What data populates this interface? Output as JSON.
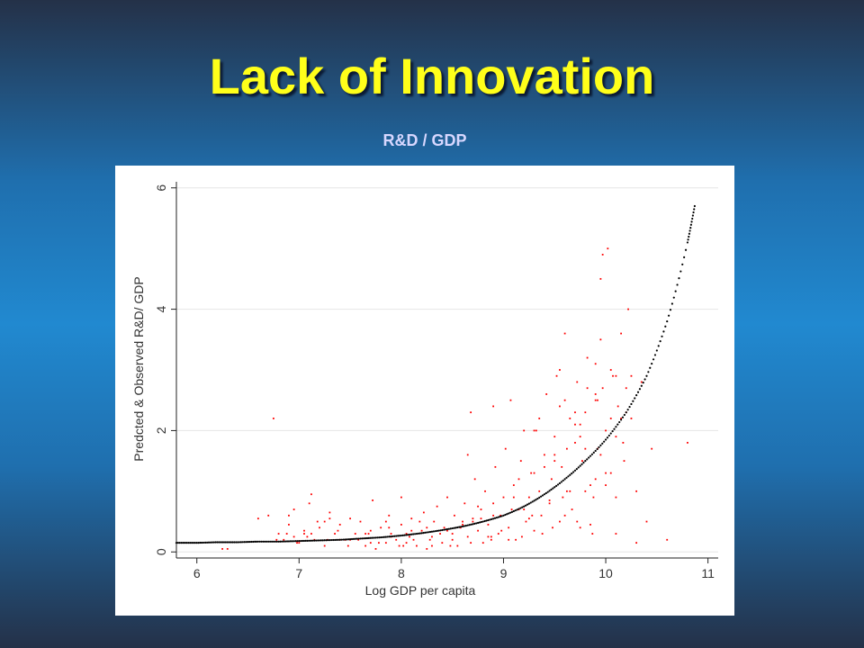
{
  "slide": {
    "title": "Lack of Innovation",
    "subtitle": "R&D / GDP"
  },
  "colors": {
    "background": "#2189d0",
    "title": "#ffff1a",
    "observed_points": "#ff0000",
    "fitted_curve": "#000000"
  },
  "chart_data": {
    "type": "scatter",
    "title": "",
    "xlabel": "Log GDP per capita",
    "ylabel": "Predcted & Observed R&D/ GDP",
    "xlim": [
      5.8,
      11.1
    ],
    "ylim": [
      -0.1,
      6.1
    ],
    "xticks": [
      6,
      7,
      8,
      9,
      10,
      11
    ],
    "yticks": [
      0,
      2,
      4,
      6
    ],
    "grid": true,
    "legend": "none",
    "series": [
      {
        "role": "observed",
        "marker": "dot",
        "color": "#ff0000",
        "x": [
          6.25,
          6.3,
          6.6,
          6.7,
          6.8,
          6.85,
          6.9,
          6.95,
          7.0,
          7.05,
          7.1,
          7.12,
          7.15,
          7.2,
          7.25,
          7.3,
          7.35,
          7.4,
          7.45,
          7.5,
          7.55,
          7.6,
          7.65,
          7.7,
          7.72,
          7.75,
          7.8,
          7.85,
          7.88,
          7.9,
          7.95,
          8.0,
          8.02,
          8.05,
          8.1,
          8.12,
          8.15,
          8.2,
          8.22,
          8.25,
          8.3,
          8.32,
          8.35,
          8.4,
          8.42,
          8.45,
          8.5,
          8.52,
          8.55,
          8.6,
          8.62,
          8.65,
          8.68,
          8.7,
          8.72,
          8.75,
          8.78,
          8.8,
          8.82,
          8.85,
          8.88,
          8.9,
          8.92,
          8.95,
          8.97,
          9.0,
          9.02,
          9.05,
          9.07,
          9.1,
          9.12,
          9.15,
          9.17,
          9.2,
          9.22,
          9.25,
          9.27,
          9.3,
          9.32,
          9.35,
          9.37,
          9.4,
          9.42,
          9.45,
          9.47,
          9.5,
          9.52,
          9.55,
          9.57,
          9.6,
          9.62,
          9.65,
          9.67,
          9.7,
          9.72,
          9.75,
          9.77,
          9.8,
          9.82,
          9.85,
          9.87,
          9.9,
          9.92,
          9.95,
          9.97,
          10.0,
          10.02,
          10.05,
          10.07,
          10.1,
          10.12,
          10.15,
          10.17,
          10.2,
          10.22,
          10.25,
          10.3,
          10.35,
          10.4,
          10.45,
          10.6,
          10.8,
          7.12,
          7.3,
          7.5,
          7.7,
          7.9,
          8.1,
          8.3,
          8.5,
          8.7,
          8.9,
          9.1,
          9.3,
          9.5,
          9.7,
          9.9,
          10.1,
          10.3,
          6.9,
          7.4,
          8.0,
          8.6,
          9.2,
          9.8,
          10.0,
          9.95,
          9.97,
          9.6,
          8.9,
          8.65,
          8.75,
          9.15,
          9.35,
          9.55,
          9.75,
          9.9,
          10.05,
          10.15,
          10.25,
          9.65,
          9.85,
          9.45,
          9.25,
          9.05,
          8.85,
          8.45,
          8.25,
          8.05,
          7.85,
          7.65,
          7.45,
          7.25,
          7.05,
          6.95,
          6.75,
          9.5,
          9.7,
          9.9,
          10.1,
          9.6,
          9.8,
          10.0,
          9.3,
          9.4,
          9.55,
          9.75,
          9.95,
          10.1,
          10.2,
          9.62,
          9.82,
          9.88,
          9.92,
          10.05,
          10.18,
          9.72,
          9.58,
          9.48,
          9.38,
          9.28,
          9.18,
          9.08,
          8.98,
          8.88,
          8.78,
          8.68,
          8.58,
          8.48,
          8.38,
          8.28,
          8.18,
          8.08,
          7.98,
          7.88,
          7.78,
          7.68,
          7.58,
          7.48,
          7.38,
          7.28,
          7.18,
          7.08,
          6.98,
          6.88,
          6.78
        ],
        "y": [
          0.05,
          0.05,
          0.55,
          0.6,
          0.3,
          0.2,
          0.45,
          0.7,
          0.15,
          0.35,
          0.8,
          0.95,
          0.2,
          0.4,
          0.1,
          0.65,
          0.3,
          0.45,
          0.2,
          0.55,
          0.3,
          0.5,
          0.1,
          0.35,
          0.85,
          0.05,
          0.4,
          0.15,
          0.6,
          0.3,
          0.2,
          0.45,
          0.1,
          0.3,
          0.55,
          0.2,
          0.1,
          0.35,
          0.65,
          0.05,
          0.25,
          0.5,
          0.75,
          0.15,
          0.4,
          0.9,
          0.3,
          0.6,
          0.1,
          0.45,
          0.8,
          0.25,
          2.3,
          0.55,
          1.2,
          0.35,
          0.7,
          0.15,
          1.0,
          0.45,
          0.25,
          0.8,
          1.4,
          0.3,
          0.6,
          0.9,
          1.7,
          0.4,
          2.5,
          1.1,
          0.2,
          0.7,
          1.5,
          2.0,
          0.5,
          0.9,
          1.3,
          0.35,
          2.0,
          1.0,
          0.6,
          1.6,
          2.6,
          0.8,
          1.2,
          1.9,
          2.9,
          0.5,
          1.4,
          3.6,
          1.0,
          2.2,
          0.7,
          1.8,
          2.8,
          0.4,
          1.5,
          2.3,
          3.2,
          1.1,
          0.3,
          2.6,
          1.7,
          3.5,
          4.9,
          2.0,
          5.0,
          1.3,
          2.9,
          0.9,
          2.4,
          3.6,
          1.8,
          2.7,
          4.0,
          2.2,
          1.0,
          2.8,
          0.5,
          1.7,
          0.2,
          1.8,
          0.3,
          0.55,
          0.2,
          0.15,
          0.25,
          0.35,
          0.1,
          0.2,
          0.5,
          0.6,
          0.9,
          1.3,
          1.6,
          2.1,
          2.5,
          0.3,
          0.15,
          0.6,
          0.2,
          0.9,
          0.5,
          0.7,
          1.0,
          1.3,
          4.5,
          2.7,
          0.6,
          2.4,
          1.6,
          0.75,
          1.2,
          2.2,
          2.4,
          1.9,
          3.1,
          3.0,
          2.2,
          2.9,
          1.0,
          0.45,
          0.85,
          0.55,
          0.2,
          0.25,
          0.35,
          0.4,
          0.15,
          0.5,
          0.3,
          0.2,
          0.5,
          0.3,
          0.25,
          2.2,
          1.5,
          2.3,
          1.2,
          2.9,
          2.5,
          1.7,
          1.1,
          2.0,
          1.4,
          3.0,
          2.1,
          1.6,
          1.9,
          2.3,
          1.7,
          2.7,
          0.9,
          2.5,
          2.2,
          1.5,
          0.5,
          0.9,
          0.4,
          0.3,
          0.6,
          0.25,
          0.7,
          0.35,
          0.2,
          0.55,
          0.15,
          0.4,
          0.1,
          0.3,
          0.2,
          0.5,
          0.25,
          0.1,
          0.4,
          0.15,
          0.3,
          0.2,
          0.1,
          0.35,
          0.2,
          0.5,
          0.25,
          0.15,
          0.3,
          0.2
        ]
      },
      {
        "role": "predicted",
        "marker": "line",
        "color": "#000000",
        "x": [
          5.8,
          6.0,
          6.2,
          6.4,
          6.6,
          6.8,
          7.0,
          7.2,
          7.4,
          7.6,
          7.8,
          8.0,
          8.2,
          8.4,
          8.6,
          8.8,
          9.0,
          9.2,
          9.4,
          9.6,
          9.8,
          10.0,
          10.2,
          10.4,
          10.6,
          10.8,
          10.87
        ],
        "y": [
          0.15,
          0.15,
          0.16,
          0.16,
          0.17,
          0.17,
          0.18,
          0.19,
          0.2,
          0.22,
          0.24,
          0.27,
          0.31,
          0.36,
          0.42,
          0.5,
          0.6,
          0.75,
          0.95,
          1.2,
          1.5,
          1.85,
          2.3,
          2.9,
          3.8,
          5.1,
          5.7
        ]
      }
    ]
  }
}
